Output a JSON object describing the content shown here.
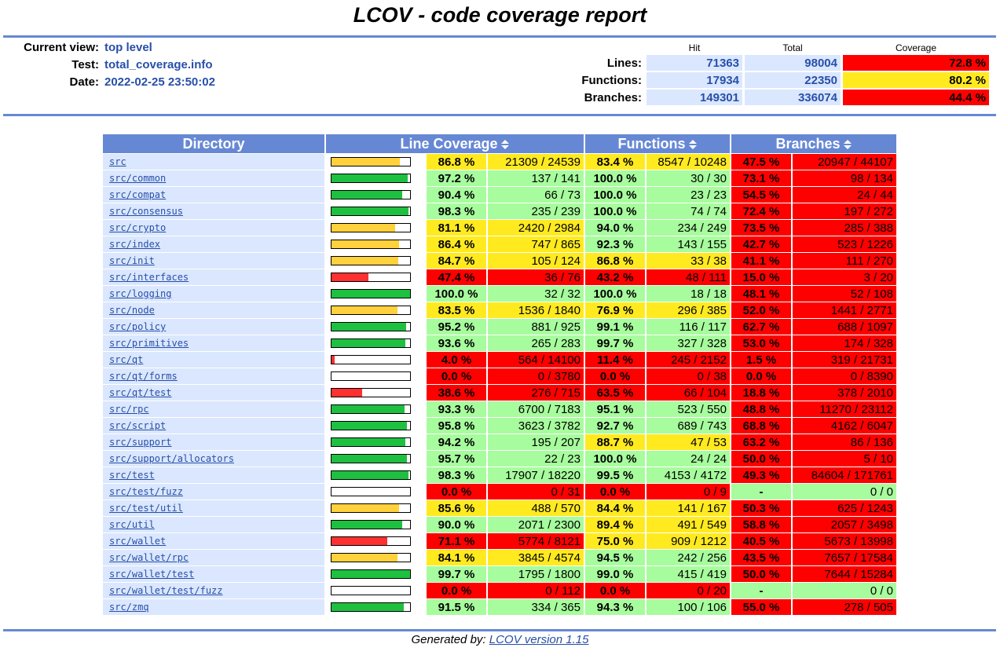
{
  "title": "LCOV - code coverage report",
  "header": {
    "current_view_label": "Current view:",
    "current_view_value": "top level",
    "test_label": "Test:",
    "test_value": "total_coverage.info",
    "date_label": "Date:",
    "date_value": "2022-02-25 23:50:02"
  },
  "summary": {
    "col_hit": "Hit",
    "col_total": "Total",
    "col_coverage": "Coverage",
    "rows": [
      {
        "label": "Lines:",
        "hit": "71363",
        "total": "98004",
        "coverage": "72.8 %",
        "level": "Lo"
      },
      {
        "label": "Functions:",
        "hit": "17934",
        "total": "22350",
        "coverage": "80.2 %",
        "level": "Med"
      },
      {
        "label": "Branches:",
        "hit": "149301",
        "total": "336074",
        "coverage": "44.4 %",
        "level": "Lo"
      }
    ]
  },
  "table": {
    "headers": {
      "directory": "Directory",
      "line": "Line Coverage",
      "functions": "Functions",
      "branches": "Branches"
    },
    "rows": [
      {
        "dir": "src",
        "lp": "86.8 %",
        "lc": "21309 / 24539",
        "ll": "Med",
        "bar": 0.868,
        "fp": "83.4 %",
        "fc": "8547 / 10248",
        "fl": "Med",
        "bp": "47.5 %",
        "bcnt": "20947 / 44107",
        "bl": "Lo"
      },
      {
        "dir": "src/common",
        "lp": "97.2 %",
        "lc": "137 / 141",
        "ll": "Hi",
        "bar": 0.972,
        "fp": "100.0 %",
        "fc": "30 / 30",
        "fl": "Hi",
        "bp": "73.1 %",
        "bcnt": "98 / 134",
        "bl": "Lo"
      },
      {
        "dir": "src/compat",
        "lp": "90.4 %",
        "lc": "66 / 73",
        "ll": "Hi",
        "bar": 0.904,
        "fp": "100.0 %",
        "fc": "23 / 23",
        "fl": "Hi",
        "bp": "54.5 %",
        "bcnt": "24 / 44",
        "bl": "Lo"
      },
      {
        "dir": "src/consensus",
        "lp": "98.3 %",
        "lc": "235 / 239",
        "ll": "Hi",
        "bar": 0.983,
        "fp": "100.0 %",
        "fc": "74 / 74",
        "fl": "Hi",
        "bp": "72.4 %",
        "bcnt": "197 / 272",
        "bl": "Lo"
      },
      {
        "dir": "src/crypto",
        "lp": "81.1 %",
        "lc": "2420 / 2984",
        "ll": "Med",
        "bar": 0.811,
        "fp": "94.0 %",
        "fc": "234 / 249",
        "fl": "Hi",
        "bp": "73.5 %",
        "bcnt": "285 / 388",
        "bl": "Lo"
      },
      {
        "dir": "src/index",
        "lp": "86.4 %",
        "lc": "747 / 865",
        "ll": "Med",
        "bar": 0.864,
        "fp": "92.3 %",
        "fc": "143 / 155",
        "fl": "Hi",
        "bp": "42.7 %",
        "bcnt": "523 / 1226",
        "bl": "Lo"
      },
      {
        "dir": "src/init",
        "lp": "84.7 %",
        "lc": "105 / 124",
        "ll": "Med",
        "bar": 0.847,
        "fp": "86.8 %",
        "fc": "33 / 38",
        "fl": "Med",
        "bp": "41.1 %",
        "bcnt": "111 / 270",
        "bl": "Lo"
      },
      {
        "dir": "src/interfaces",
        "lp": "47.4 %",
        "lc": "36 / 76",
        "ll": "Lo",
        "bar": 0.474,
        "fp": "43.2 %",
        "fc": "48 / 111",
        "fl": "Lo",
        "bp": "15.0 %",
        "bcnt": "3 / 20",
        "bl": "Lo"
      },
      {
        "dir": "src/logging",
        "lp": "100.0 %",
        "lc": "32 / 32",
        "ll": "Hi",
        "bar": 1.0,
        "fp": "100.0 %",
        "fc": "18 / 18",
        "fl": "Hi",
        "bp": "48.1 %",
        "bcnt": "52 / 108",
        "bl": "Lo"
      },
      {
        "dir": "src/node",
        "lp": "83.5 %",
        "lc": "1536 / 1840",
        "ll": "Med",
        "bar": 0.835,
        "fp": "76.9 %",
        "fc": "296 / 385",
        "fl": "Med",
        "bp": "52.0 %",
        "bcnt": "1441 / 2771",
        "bl": "Lo"
      },
      {
        "dir": "src/policy",
        "lp": "95.2 %",
        "lc": "881 / 925",
        "ll": "Hi",
        "bar": 0.952,
        "fp": "99.1 %",
        "fc": "116 / 117",
        "fl": "Hi",
        "bp": "62.7 %",
        "bcnt": "688 / 1097",
        "bl": "Lo"
      },
      {
        "dir": "src/primitives",
        "lp": "93.6 %",
        "lc": "265 / 283",
        "ll": "Hi",
        "bar": 0.936,
        "fp": "99.7 %",
        "fc": "327 / 328",
        "fl": "Hi",
        "bp": "53.0 %",
        "bcnt": "174 / 328",
        "bl": "Lo"
      },
      {
        "dir": "src/qt",
        "lp": "4.0 %",
        "lc": "564 / 14100",
        "ll": "Lo",
        "bar": 0.04,
        "fp": "11.4 %",
        "fc": "245 / 2152",
        "fl": "Lo",
        "bp": "1.5 %",
        "bcnt": "319 / 21731",
        "bl": "Lo"
      },
      {
        "dir": "src/qt/forms",
        "lp": "0.0 %",
        "lc": "0 / 3780",
        "ll": "Lo",
        "bar": 0.0,
        "fp": "0.0 %",
        "fc": "0 / 38",
        "fl": "Lo",
        "bp": "0.0 %",
        "bcnt": "0 / 8390",
        "bl": "Lo"
      },
      {
        "dir": "src/qt/test",
        "lp": "38.6 %",
        "lc": "276 / 715",
        "ll": "Lo",
        "bar": 0.386,
        "fp": "63.5 %",
        "fc": "66 / 104",
        "fl": "Lo",
        "bp": "18.8 %",
        "bcnt": "378 / 2010",
        "bl": "Lo"
      },
      {
        "dir": "src/rpc",
        "lp": "93.3 %",
        "lc": "6700 / 7183",
        "ll": "Hi",
        "bar": 0.933,
        "fp": "95.1 %",
        "fc": "523 / 550",
        "fl": "Hi",
        "bp": "48.8 %",
        "bcnt": "11270 / 23112",
        "bl": "Lo"
      },
      {
        "dir": "src/script",
        "lp": "95.8 %",
        "lc": "3623 / 3782",
        "ll": "Hi",
        "bar": 0.958,
        "fp": "92.7 %",
        "fc": "689 / 743",
        "fl": "Hi",
        "bp": "68.8 %",
        "bcnt": "4162 / 6047",
        "bl": "Lo"
      },
      {
        "dir": "src/support",
        "lp": "94.2 %",
        "lc": "195 / 207",
        "ll": "Hi",
        "bar": 0.942,
        "fp": "88.7 %",
        "fc": "47 / 53",
        "fl": "Med",
        "bp": "63.2 %",
        "bcnt": "86 / 136",
        "bl": "Lo"
      },
      {
        "dir": "src/support/allocators",
        "lp": "95.7 %",
        "lc": "22 / 23",
        "ll": "Hi",
        "bar": 0.957,
        "fp": "100.0 %",
        "fc": "24 / 24",
        "fl": "Hi",
        "bp": "50.0 %",
        "bcnt": "5 / 10",
        "bl": "Lo"
      },
      {
        "dir": "src/test",
        "lp": "98.3 %",
        "lc": "17907 / 18220",
        "ll": "Hi",
        "bar": 0.983,
        "fp": "99.5 %",
        "fc": "4153 / 4172",
        "fl": "Hi",
        "bp": "49.3 %",
        "bcnt": "84604 / 171761",
        "bl": "Lo"
      },
      {
        "dir": "src/test/fuzz",
        "lp": "0.0 %",
        "lc": "0 / 31",
        "ll": "Lo",
        "bar": 0.0,
        "fp": "0.0 %",
        "fc": "0 / 9",
        "fl": "Lo",
        "bp": "-",
        "bcnt": "0 / 0",
        "bl": "Hi"
      },
      {
        "dir": "src/test/util",
        "lp": "85.6 %",
        "lc": "488 / 570",
        "ll": "Med",
        "bar": 0.856,
        "fp": "84.4 %",
        "fc": "141 / 167",
        "fl": "Med",
        "bp": "50.3 %",
        "bcnt": "625 / 1243",
        "bl": "Lo"
      },
      {
        "dir": "src/util",
        "lp": "90.0 %",
        "lc": "2071 / 2300",
        "ll": "Hi",
        "bar": 0.9,
        "fp": "89.4 %",
        "fc": "491 / 549",
        "fl": "Med",
        "bp": "58.8 %",
        "bcnt": "2057 / 3498",
        "bl": "Lo"
      },
      {
        "dir": "src/wallet",
        "lp": "71.1 %",
        "lc": "5774 / 8121",
        "ll": "Lo",
        "bar": 0.711,
        "fp": "75.0 %",
        "fc": "909 / 1212",
        "fl": "Med",
        "bp": "40.5 %",
        "bcnt": "5673 / 13998",
        "bl": "Lo"
      },
      {
        "dir": "src/wallet/rpc",
        "lp": "84.1 %",
        "lc": "3845 / 4574",
        "ll": "Med",
        "bar": 0.841,
        "fp": "94.5 %",
        "fc": "242 / 256",
        "fl": "Hi",
        "bp": "43.5 %",
        "bcnt": "7657 / 17584",
        "bl": "Lo"
      },
      {
        "dir": "src/wallet/test",
        "lp": "99.7 %",
        "lc": "1795 / 1800",
        "ll": "Hi",
        "bar": 0.997,
        "fp": "99.0 %",
        "fc": "415 / 419",
        "fl": "Hi",
        "bp": "50.0 %",
        "bcnt": "7644 / 15284",
        "bl": "Lo"
      },
      {
        "dir": "src/wallet/test/fuzz",
        "lp": "0.0 %",
        "lc": "0 / 112",
        "ll": "Lo",
        "bar": 0.0,
        "fp": "0.0 %",
        "fc": "0 / 20",
        "fl": "Lo",
        "bp": "-",
        "bcnt": "0 / 0",
        "bl": "Hi"
      },
      {
        "dir": "src/zmq",
        "lp": "91.5 %",
        "lc": "334 / 365",
        "ll": "Hi",
        "bar": 0.915,
        "fp": "94.3 %",
        "fc": "100 / 106",
        "fl": "Hi",
        "bp": "55.0 %",
        "bcnt": "278 / 505",
        "bl": "Lo"
      }
    ]
  },
  "colors": {
    "Hi": "#a7fc9d",
    "Med": "#ffea20",
    "Lo": "#ff0000",
    "bar_Hi": "#1ec13f",
    "bar_Med": "#ffd13c",
    "bar_Lo": "#ff3030"
  },
  "icons": {
    "sort": "sort-icon"
  },
  "footer": {
    "prefix": "Generated by:",
    "link": "LCOV version 1.15"
  }
}
